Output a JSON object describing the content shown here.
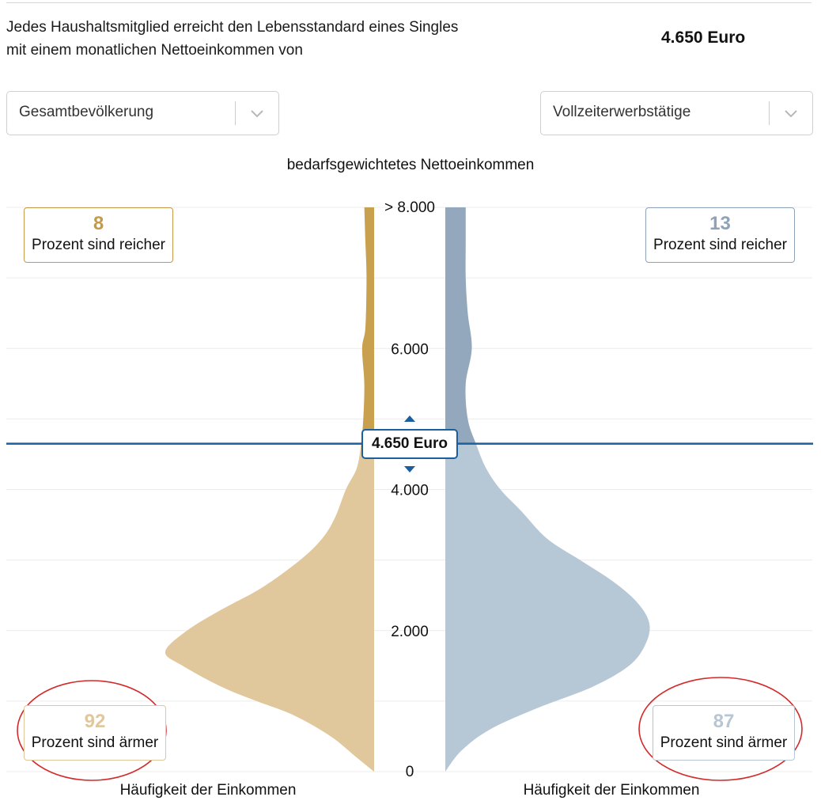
{
  "header": {
    "intro_line1": "Jedes Haushaltsmitglied erreicht den Lebensstandard eines Singles",
    "intro_line2": "mit einem monatlichen Nettoeinkommen von",
    "amount": "4.650 Euro"
  },
  "filters": {
    "left_selected": "Gesamtbevölkerung",
    "right_selected": "Vollzeiterwerbstätige"
  },
  "icons": {
    "dropdown": "chevron-down-icon",
    "marker_up": "triangle-up-icon",
    "marker_down": "triangle-down-icon"
  },
  "colors": {
    "left_above": "#c9a04e",
    "left_below": "#e0c79c",
    "right_above": "#93a8bd",
    "right_below": "#b6c7d6",
    "marker_line": "#1a5f9e",
    "annotation_circle": "#d42a2a"
  },
  "chart_data": {
    "type": "area",
    "title": "bedarfsgewichtetes Nettoeinkommen",
    "y_ticks": [
      "0",
      "2.000",
      "4.000",
      "6.000",
      "> 8.000"
    ],
    "y_tick_values": [
      0,
      2000,
      4000,
      6000,
      8000
    ],
    "ylim": [
      0,
      8000
    ],
    "xlabel_left": "Häufigkeit der Einkommen",
    "xlabel_right": "Häufigkeit der Einkommen",
    "threshold": {
      "value": 4650,
      "label": "4.650 Euro"
    },
    "grid": true,
    "series": [
      {
        "side": "left",
        "income": [
          0,
          200,
          500,
          800,
          1000,
          1200,
          1500,
          1700,
          2000,
          2300,
          2600,
          3000,
          3300,
          3600,
          4000,
          4300,
          4650,
          5000,
          5500,
          6000,
          6300,
          7000,
          7500,
          8000
        ],
        "density": [
          0.0,
          0.08,
          0.2,
          0.37,
          0.54,
          0.7,
          0.88,
          0.96,
          0.86,
          0.7,
          0.52,
          0.34,
          0.24,
          0.18,
          0.13,
          0.08,
          0.06,
          0.05,
          0.045,
          0.055,
          0.04,
          0.035,
          0.04,
          0.045
        ],
        "above": {
          "value": "8",
          "text": "Prozent sind reicher"
        },
        "below": {
          "value": "92",
          "text": "Prozent sind ärmer"
        }
      },
      {
        "side": "right",
        "income": [
          0,
          300,
          600,
          900,
          1200,
          1500,
          1800,
          2100,
          2400,
          2700,
          3000,
          3300,
          3700,
          4000,
          4300,
          4650,
          5000,
          5500,
          6000,
          6500,
          7000,
          7500,
          8000
        ],
        "density": [
          0.0,
          0.08,
          0.22,
          0.45,
          0.72,
          0.9,
          0.98,
          1.0,
          0.94,
          0.82,
          0.66,
          0.5,
          0.37,
          0.27,
          0.2,
          0.15,
          0.11,
          0.1,
          0.13,
          0.11,
          0.1,
          0.1,
          0.1
        ],
        "above": {
          "value": "13",
          "text": "Prozent sind reicher"
        },
        "below": {
          "value": "87",
          "text": "Prozent sind ärmer"
        }
      }
    ]
  }
}
